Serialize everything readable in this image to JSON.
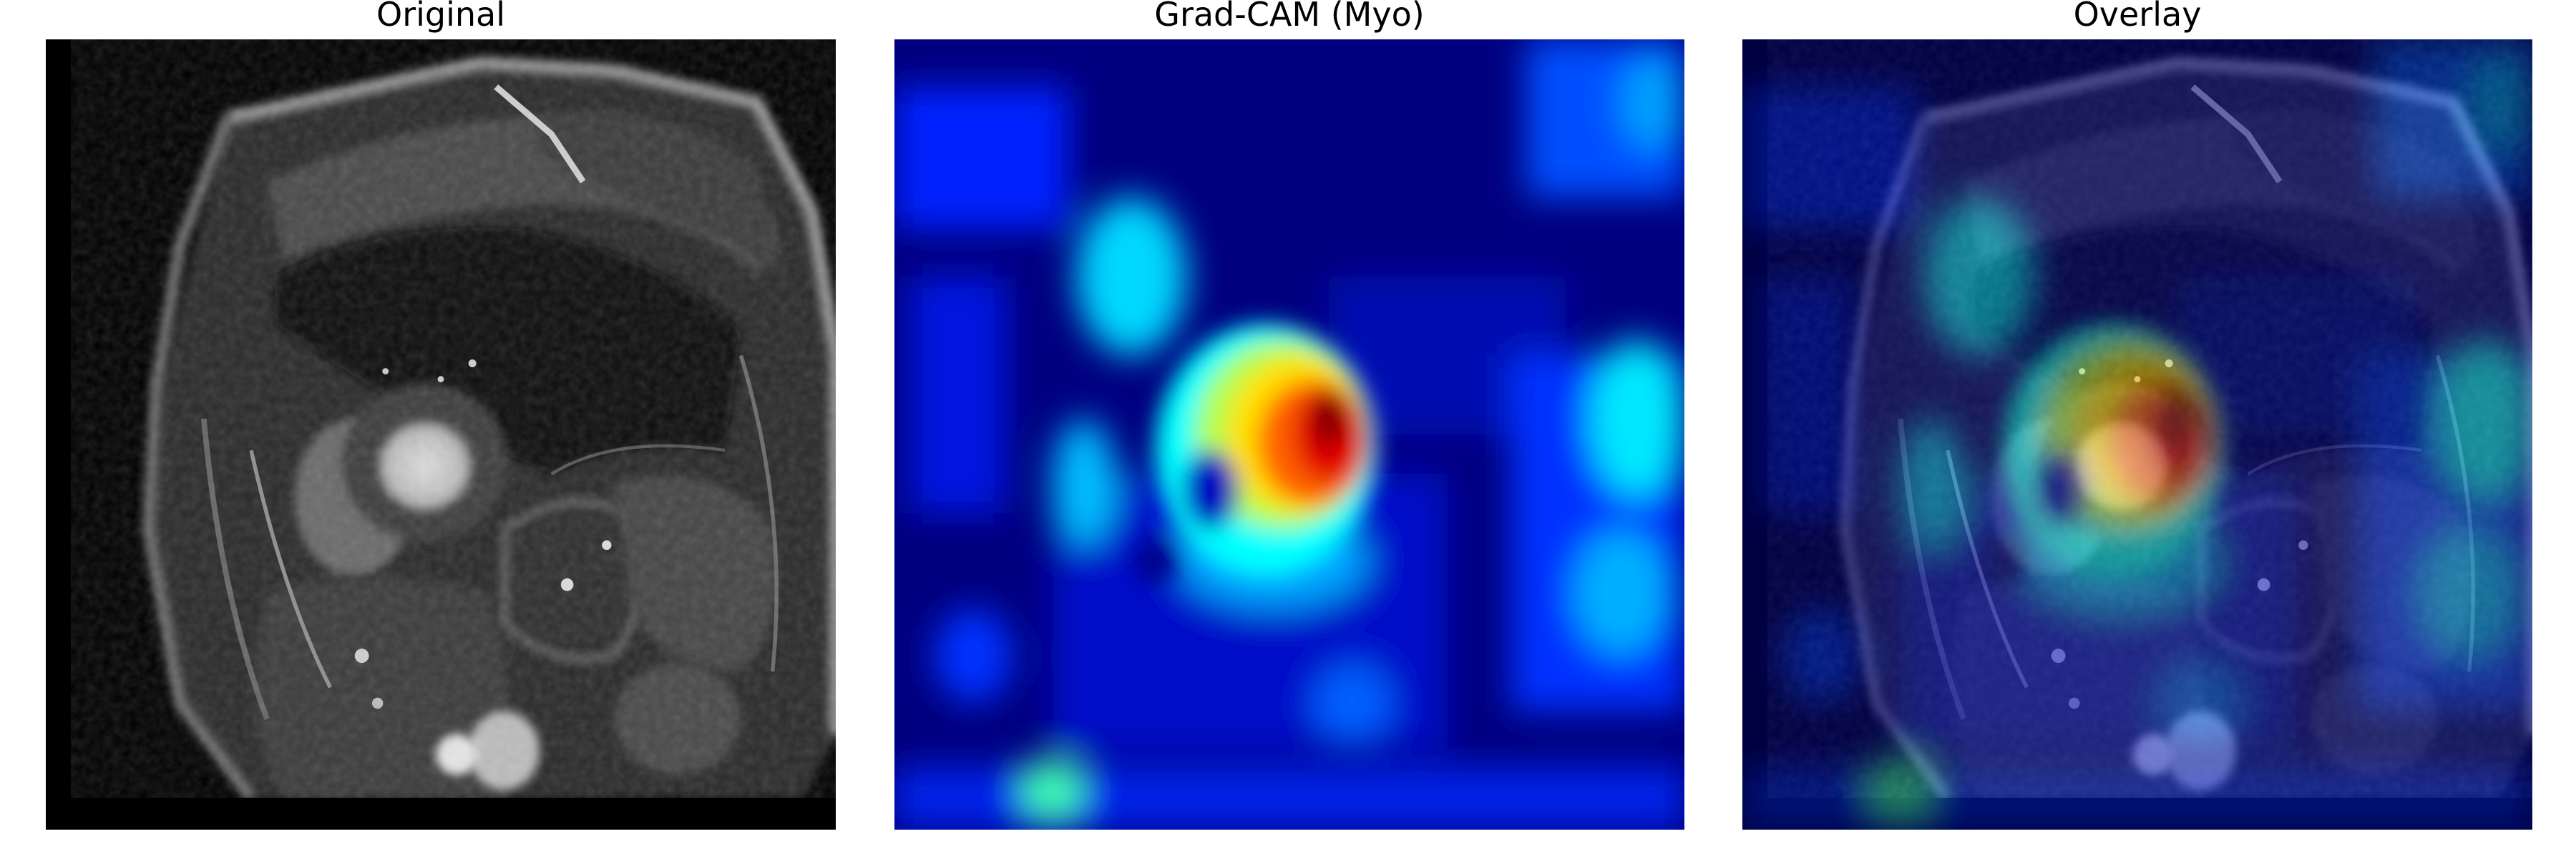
{
  "panels": [
    {
      "title": "Original"
    },
    {
      "title": "Grad-CAM (Myo)"
    },
    {
      "title": "Overlay"
    }
  ]
}
